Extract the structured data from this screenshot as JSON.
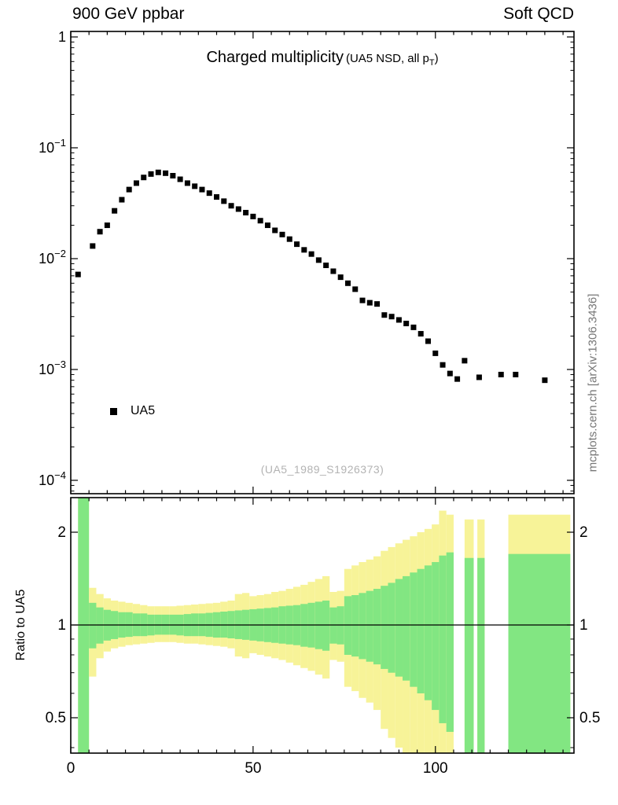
{
  "header": {
    "left": "900 GeV ppbar",
    "right": "Soft QCD"
  },
  "main": {
    "title": "Charged multiplicity",
    "subtitle_prefix": "(UA5 NSD, all p",
    "subtitle_sub": "T",
    "subtitle_suffix": ")",
    "watermark": "(UA5_1989_S1926373)",
    "side_text": "mcplots.cern.ch [arXiv:1306.3436]"
  },
  "legend": {
    "label": "UA5",
    "marker_color": "#000000"
  },
  "ratio": {
    "ylabel": "Ratio to UA5"
  },
  "chart_data": [
    {
      "type": "scatter",
      "title": "Charged multiplicity (UA5 NSD, all pT)",
      "yscale": "log",
      "xlim": [
        0,
        138
      ],
      "ylim": [
        0.0001,
        1
      ],
      "x_minor_step": 5,
      "x_ticks": [
        {
          "v": 0,
          "label": "0"
        },
        {
          "v": 50,
          "label": "50"
        },
        {
          "v": 100,
          "label": "100"
        }
      ],
      "y_ticks": [
        {
          "v": 1,
          "base": "1",
          "exp": ""
        },
        {
          "v": 0.1,
          "base": "10",
          "exp": "−1"
        },
        {
          "v": 0.01,
          "base": "10",
          "exp": "−2"
        },
        {
          "v": 0.001,
          "base": "10",
          "exp": "−3"
        },
        {
          "v": 0.0001,
          "base": "10",
          "exp": "−4"
        }
      ],
      "series": [
        {
          "name": "UA5",
          "marker": "square",
          "color": "#000000",
          "points": [
            [
              2,
              0.0072
            ],
            [
              6,
              0.013
            ],
            [
              8,
              0.0175
            ],
            [
              10,
              0.02
            ],
            [
              12,
              0.027
            ],
            [
              14,
              0.034
            ],
            [
              16,
              0.042
            ],
            [
              18,
              0.048
            ],
            [
              20,
              0.054
            ],
            [
              22,
              0.058
            ],
            [
              24,
              0.06
            ],
            [
              26,
              0.059
            ],
            [
              28,
              0.056
            ],
            [
              30,
              0.052
            ],
            [
              32,
              0.048
            ],
            [
              34,
              0.045
            ],
            [
              36,
              0.042
            ],
            [
              38,
              0.039
            ],
            [
              40,
              0.036
            ],
            [
              42,
              0.033
            ],
            [
              44,
              0.03
            ],
            [
              46,
              0.028
            ],
            [
              48,
              0.026
            ],
            [
              50,
              0.024
            ],
            [
              52,
              0.022
            ],
            [
              54,
              0.02
            ],
            [
              56,
              0.018
            ],
            [
              58,
              0.0165
            ],
            [
              60,
              0.015
            ],
            [
              62,
              0.0135
            ],
            [
              64,
              0.012
            ],
            [
              66,
              0.011
            ],
            [
              68,
              0.0097
            ],
            [
              70,
              0.0087
            ],
            [
              72,
              0.0077
            ],
            [
              74,
              0.0068
            ],
            [
              76,
              0.006
            ],
            [
              78,
              0.0053
            ],
            [
              80,
              0.0042
            ],
            [
              82,
              0.004
            ],
            [
              84,
              0.0039
            ],
            [
              86,
              0.0031
            ],
            [
              88,
              0.003
            ],
            [
              90,
              0.0028
            ],
            [
              92,
              0.0026
            ],
            [
              94,
              0.0024
            ],
            [
              96,
              0.0021
            ],
            [
              98,
              0.0018
            ],
            [
              100,
              0.0014
            ],
            [
              102,
              0.0011
            ],
            [
              104,
              0.00092
            ],
            [
              106,
              0.00082
            ],
            [
              108,
              0.0012
            ],
            [
              112,
              0.00085
            ],
            [
              118,
              0.0009
            ],
            [
              122,
              0.0009
            ],
            [
              130,
              0.0008
            ]
          ]
        }
      ]
    },
    {
      "type": "ratio-bands",
      "ylabel": "Ratio to UA5",
      "yscale": "log",
      "ylim": [
        0.38,
        2.6
      ],
      "reference_line": 1,
      "y_ticks": [
        {
          "v": 2,
          "label": "2"
        },
        {
          "v": 1,
          "label": "1"
        },
        {
          "v": 0.5,
          "label": "0.5"
        }
      ],
      "y_minor": [
        0.4,
        0.6,
        0.7,
        0.8,
        0.9
      ],
      "band_colors": {
        "outer": "#f7f398",
        "inner": "#82e682"
      },
      "bands": [
        [
          2,
          5,
          0.38,
          2.6,
          0.38,
          2.6
        ],
        [
          5,
          7,
          0.68,
          1.32,
          0.84,
          1.18
        ],
        [
          7,
          9,
          0.78,
          1.26,
          0.87,
          1.14
        ],
        [
          9,
          11,
          0.82,
          1.22,
          0.89,
          1.12
        ],
        [
          11,
          13,
          0.84,
          1.2,
          0.9,
          1.11
        ],
        [
          13,
          15,
          0.85,
          1.19,
          0.91,
          1.1
        ],
        [
          15,
          17,
          0.86,
          1.18,
          0.915,
          1.1
        ],
        [
          17,
          19,
          0.865,
          1.17,
          0.92,
          1.09
        ],
        [
          19,
          21,
          0.87,
          1.16,
          0.92,
          1.09
        ],
        [
          21,
          23,
          0.875,
          1.15,
          0.925,
          1.08
        ],
        [
          23,
          25,
          0.88,
          1.15,
          0.93,
          1.08
        ],
        [
          25,
          27,
          0.88,
          1.15,
          0.93,
          1.08
        ],
        [
          27,
          29,
          0.88,
          1.15,
          0.93,
          1.08
        ],
        [
          29,
          31,
          0.875,
          1.155,
          0.925,
          1.08
        ],
        [
          31,
          33,
          0.87,
          1.16,
          0.92,
          1.085
        ],
        [
          33,
          35,
          0.87,
          1.165,
          0.92,
          1.09
        ],
        [
          35,
          37,
          0.865,
          1.17,
          0.92,
          1.09
        ],
        [
          37,
          39,
          0.86,
          1.175,
          0.915,
          1.095
        ],
        [
          39,
          41,
          0.855,
          1.18,
          0.91,
          1.1
        ],
        [
          41,
          43,
          0.85,
          1.19,
          0.91,
          1.105
        ],
        [
          43,
          45,
          0.84,
          1.2,
          0.905,
          1.11
        ],
        [
          45,
          47,
          0.79,
          1.26,
          0.9,
          1.115
        ],
        [
          47,
          49,
          0.78,
          1.27,
          0.895,
          1.12
        ],
        [
          49,
          51,
          0.81,
          1.24,
          0.89,
          1.125
        ],
        [
          51,
          53,
          0.8,
          1.25,
          0.885,
          1.13
        ],
        [
          53,
          55,
          0.79,
          1.26,
          0.88,
          1.135
        ],
        [
          55,
          57,
          0.78,
          1.28,
          0.875,
          1.14
        ],
        [
          57,
          59,
          0.77,
          1.29,
          0.87,
          1.15
        ],
        [
          59,
          61,
          0.755,
          1.31,
          0.865,
          1.155
        ],
        [
          61,
          63,
          0.74,
          1.33,
          0.86,
          1.16
        ],
        [
          63,
          65,
          0.725,
          1.35,
          0.85,
          1.17
        ],
        [
          65,
          67,
          0.71,
          1.38,
          0.845,
          1.18
        ],
        [
          67,
          69,
          0.69,
          1.41,
          0.835,
          1.19
        ],
        [
          69,
          71,
          0.67,
          1.44,
          0.825,
          1.2
        ],
        [
          71,
          73,
          0.77,
          1.28,
          0.87,
          1.14
        ],
        [
          73,
          75,
          0.76,
          1.29,
          0.865,
          1.15
        ],
        [
          75,
          77,
          0.63,
          1.52,
          0.8,
          1.24
        ],
        [
          77,
          79,
          0.61,
          1.56,
          0.79,
          1.25
        ],
        [
          79,
          81,
          0.58,
          1.6,
          0.775,
          1.27
        ],
        [
          81,
          83,
          0.56,
          1.63,
          0.76,
          1.29
        ],
        [
          83,
          85,
          0.53,
          1.67,
          0.745,
          1.31
        ],
        [
          85,
          87,
          0.46,
          1.74,
          0.72,
          1.34
        ],
        [
          87,
          89,
          0.43,
          1.79,
          0.7,
          1.37
        ],
        [
          89,
          91,
          0.4,
          1.84,
          0.68,
          1.41
        ],
        [
          91,
          93,
          0.38,
          1.89,
          0.66,
          1.44
        ],
        [
          93,
          95,
          0.38,
          1.94,
          0.63,
          1.48
        ],
        [
          95,
          97,
          0.38,
          2.0,
          0.6,
          1.52
        ],
        [
          97,
          99,
          0.38,
          2.05,
          0.57,
          1.56
        ],
        [
          99,
          101,
          0.38,
          2.12,
          0.53,
          1.6
        ],
        [
          101,
          103,
          0.38,
          2.35,
          0.48,
          1.68
        ],
        [
          103,
          105,
          0.38,
          2.28,
          0.45,
          1.72
        ],
        [
          108,
          110.5,
          0.38,
          2.2,
          0.38,
          1.65
        ],
        [
          111.5,
          113.5,
          0.38,
          2.2,
          0.38,
          1.65
        ],
        [
          120,
          137,
          0.38,
          2.28,
          0.38,
          1.7
        ]
      ]
    }
  ]
}
